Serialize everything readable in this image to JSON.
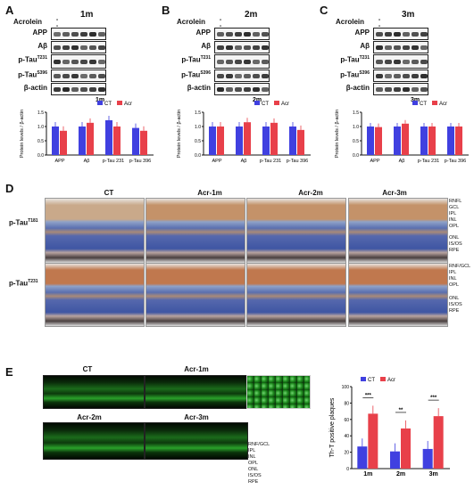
{
  "panels": {
    "A": {
      "letter": "A",
      "time": "1m"
    },
    "B": {
      "letter": "B",
      "time": "2m"
    },
    "C": {
      "letter": "C",
      "time": "3m"
    },
    "D": {
      "letter": "D"
    },
    "E": {
      "letter": "E"
    }
  },
  "western": {
    "acrolein_label": "Acrolein",
    "signs": [
      "-",
      "-",
      "-",
      "+",
      "+",
      "+"
    ],
    "labels": [
      "APP",
      "Aβ",
      "p-Tau",
      "p-Tau",
      "β-actin"
    ],
    "sup": [
      "",
      "",
      "T231",
      "S396",
      ""
    ]
  },
  "bar_legend": {
    "ct": "CT",
    "acr": "Acr"
  },
  "colors": {
    "ct": "#4040e0",
    "acr": "#e8404a"
  },
  "chart_data": [
    {
      "type": "bar",
      "title": "1m",
      "ylabel": "Protein levels / β-actin",
      "ylim": [
        0,
        1.5
      ],
      "yticks": [
        "0.0",
        "0.5",
        "1.0",
        "1.5"
      ],
      "categories": [
        "APP",
        "Aβ",
        "p-Tau 231",
        "p-Tau 396"
      ],
      "series": [
        {
          "name": "CT",
          "values": [
            1.0,
            1.0,
            1.22,
            0.95
          ]
        },
        {
          "name": "Acr",
          "values": [
            0.85,
            1.13,
            1.0,
            0.85
          ]
        }
      ]
    },
    {
      "type": "bar",
      "title": "2m",
      "ylabel": "Protein levels / β-actin",
      "ylim": [
        0,
        1.5
      ],
      "yticks": [
        "0.0",
        "0.5",
        "1.0",
        "1.5"
      ],
      "categories": [
        "APP",
        "Aβ",
        "p-Tau 231",
        "p-Tau 396"
      ],
      "series": [
        {
          "name": "CT",
          "values": [
            1.0,
            1.0,
            1.0,
            1.0
          ]
        },
        {
          "name": "Acr",
          "values": [
            1.0,
            1.15,
            1.13,
            0.88
          ]
        }
      ]
    },
    {
      "type": "bar",
      "title": "3m",
      "ylabel": "Protein levels / β-actin",
      "ylim": [
        0,
        1.5
      ],
      "yticks": [
        "0.0",
        "0.5",
        "1.0",
        "1.5"
      ],
      "categories": [
        "APP",
        "Aβ",
        "p-Tau 231",
        "p-Tau 396"
      ],
      "series": [
        {
          "name": "CT",
          "values": [
            1.0,
            1.0,
            1.0,
            1.0
          ]
        },
        {
          "name": "Acr",
          "values": [
            0.98,
            1.1,
            1.0,
            1.0
          ]
        }
      ]
    },
    {
      "type": "bar",
      "ylabel": "Th-T positive plaques",
      "ylim": [
        0,
        100
      ],
      "yticks": [
        "0",
        "20",
        "40",
        "60",
        "80",
        "100"
      ],
      "categories": [
        "1m",
        "2m",
        "3m"
      ],
      "series": [
        {
          "name": "CT",
          "values": [
            27,
            21,
            24
          ]
        },
        {
          "name": "Acr",
          "values": [
            67,
            49,
            64
          ]
        }
      ],
      "significance": [
        "***",
        "**",
        "***"
      ]
    }
  ],
  "retina": {
    "columns": [
      "CT",
      "Acr-1m",
      "Acr-2m",
      "Acr-3m"
    ],
    "rows": [
      {
        "label": "p-Tau",
        "sup": "T181"
      },
      {
        "label": "p-Tau",
        "sup": "T231"
      }
    ],
    "layers_row1": [
      "RNFL",
      "GCL",
      "IPL",
      "INL",
      "OPL",
      "ONL",
      "IS/OS",
      "RPE"
    ],
    "layers_row2": [
      "RNF/GCL",
      "IPL",
      "INL",
      "OPL",
      "ONL",
      "IS/OS",
      "RPE"
    ]
  },
  "fluor": {
    "top": [
      "CT",
      "Acr-1m"
    ],
    "bottom": [
      "Acr-2m",
      "Acr-3m"
    ],
    "layers": [
      "RNF/GCL",
      "IPL",
      "INL",
      "OPL",
      "ONL",
      "IS/OS",
      "RPE"
    ]
  }
}
